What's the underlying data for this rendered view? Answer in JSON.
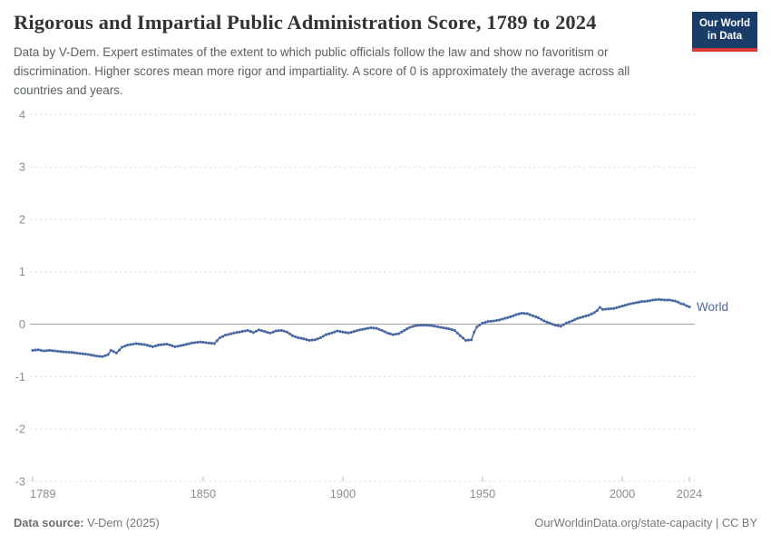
{
  "header": {
    "title": "Rigorous and Impartial Public Administration Score, 1789 to 2024",
    "subtitle": "Data by V-Dem. Expert estimates of the extent to which public officials follow the law and show no favoritism or discrimination. Higher scores mean more rigor and impartiality. A score of 0 is approximately the average across all countries and years.",
    "logo": {
      "line1": "Our World",
      "line2": "in Data"
    }
  },
  "footer": {
    "source_label": "Data source:",
    "source_value": " V-Dem (2025)",
    "right_text": "OurWorldinData.org/state-capacity | CC BY"
  },
  "colors": {
    "series_blue": "#4867a3",
    "logo_navy": "#1a3c69",
    "logo_red": "#d93a34",
    "gridline": "#d8d8d8",
    "zero_line": "#9f9f9f",
    "axis_label": "#8c8c8c"
  },
  "chart_data": {
    "type": "line",
    "title": "Rigorous and Impartial Public Administration Score, 1789 to 2024",
    "xlabel": "",
    "ylabel": "",
    "xlim": [
      1789,
      2026
    ],
    "ylim": [
      -3,
      4
    ],
    "grid": "horizontal dashed",
    "zero_line": true,
    "legend_position": "end-of-line",
    "x_ticks": [
      1789,
      1850,
      1900,
      1950,
      2000,
      2024
    ],
    "y_ticks": [
      4,
      3,
      2,
      1,
      0,
      -1,
      -2,
      -3
    ],
    "end_label": "World",
    "series": [
      {
        "name": "World",
        "color": "#4867a3",
        "points": [
          [
            1789,
            -0.5
          ],
          [
            1791,
            -0.49
          ],
          [
            1793,
            -0.51
          ],
          [
            1795,
            -0.5
          ],
          [
            1797,
            -0.51
          ],
          [
            1800,
            -0.53
          ],
          [
            1803,
            -0.54
          ],
          [
            1806,
            -0.56
          ],
          [
            1809,
            -0.58
          ],
          [
            1812,
            -0.61
          ],
          [
            1814,
            -0.62
          ],
          [
            1816,
            -0.58
          ],
          [
            1817,
            -0.5
          ],
          [
            1819,
            -0.55
          ],
          [
            1821,
            -0.44
          ],
          [
            1823,
            -0.4
          ],
          [
            1826,
            -0.37
          ],
          [
            1829,
            -0.39
          ],
          [
            1832,
            -0.43
          ],
          [
            1834,
            -0.4
          ],
          [
            1837,
            -0.38
          ],
          [
            1840,
            -0.43
          ],
          [
            1843,
            -0.4
          ],
          [
            1846,
            -0.36
          ],
          [
            1849,
            -0.34
          ],
          [
            1852,
            -0.36
          ],
          [
            1854,
            -0.37
          ],
          [
            1856,
            -0.26
          ],
          [
            1858,
            -0.21
          ],
          [
            1861,
            -0.17
          ],
          [
            1864,
            -0.14
          ],
          [
            1866,
            -0.12
          ],
          [
            1868,
            -0.16
          ],
          [
            1870,
            -0.11
          ],
          [
            1872,
            -0.14
          ],
          [
            1874,
            -0.17
          ],
          [
            1876,
            -0.13
          ],
          [
            1878,
            -0.12
          ],
          [
            1880,
            -0.15
          ],
          [
            1882,
            -0.22
          ],
          [
            1884,
            -0.26
          ],
          [
            1886,
            -0.28
          ],
          [
            1888,
            -0.31
          ],
          [
            1890,
            -0.3
          ],
          [
            1892,
            -0.26
          ],
          [
            1894,
            -0.2
          ],
          [
            1896,
            -0.17
          ],
          [
            1898,
            -0.13
          ],
          [
            1900,
            -0.15
          ],
          [
            1902,
            -0.17
          ],
          [
            1904,
            -0.14
          ],
          [
            1906,
            -0.11
          ],
          [
            1908,
            -0.09
          ],
          [
            1910,
            -0.07
          ],
          [
            1912,
            -0.08
          ],
          [
            1914,
            -0.12
          ],
          [
            1916,
            -0.17
          ],
          [
            1918,
            -0.2
          ],
          [
            1920,
            -0.18
          ],
          [
            1922,
            -0.12
          ],
          [
            1924,
            -0.06
          ],
          [
            1926,
            -0.03
          ],
          [
            1928,
            -0.02
          ],
          [
            1930,
            -0.02
          ],
          [
            1932,
            -0.03
          ],
          [
            1934,
            -0.05
          ],
          [
            1936,
            -0.07
          ],
          [
            1938,
            -0.09
          ],
          [
            1940,
            -0.12
          ],
          [
            1942,
            -0.22
          ],
          [
            1944,
            -0.31
          ],
          [
            1946,
            -0.3
          ],
          [
            1947,
            -0.15
          ],
          [
            1948,
            -0.05
          ],
          [
            1950,
            0.02
          ],
          [
            1952,
            0.05
          ],
          [
            1954,
            0.06
          ],
          [
            1956,
            0.08
          ],
          [
            1958,
            0.11
          ],
          [
            1960,
            0.14
          ],
          [
            1962,
            0.18
          ],
          [
            1964,
            0.21
          ],
          [
            1966,
            0.2
          ],
          [
            1968,
            0.16
          ],
          [
            1970,
            0.12
          ],
          [
            1972,
            0.06
          ],
          [
            1974,
            0.02
          ],
          [
            1976,
            -0.02
          ],
          [
            1978,
            -0.04
          ],
          [
            1980,
            0.02
          ],
          [
            1982,
            0.06
          ],
          [
            1984,
            0.11
          ],
          [
            1986,
            0.14
          ],
          [
            1988,
            0.17
          ],
          [
            1990,
            0.22
          ],
          [
            1991,
            0.26
          ],
          [
            1992,
            0.32
          ],
          [
            1993,
            0.28
          ],
          [
            1995,
            0.29
          ],
          [
            1997,
            0.3
          ],
          [
            1999,
            0.33
          ],
          [
            2001,
            0.36
          ],
          [
            2003,
            0.39
          ],
          [
            2005,
            0.41
          ],
          [
            2007,
            0.43
          ],
          [
            2009,
            0.44
          ],
          [
            2011,
            0.46
          ],
          [
            2013,
            0.47
          ],
          [
            2015,
            0.46
          ],
          [
            2017,
            0.46
          ],
          [
            2019,
            0.44
          ],
          [
            2020,
            0.42
          ],
          [
            2021,
            0.39
          ],
          [
            2022,
            0.38
          ],
          [
            2023,
            0.35
          ],
          [
            2024,
            0.33
          ]
        ]
      }
    ]
  }
}
